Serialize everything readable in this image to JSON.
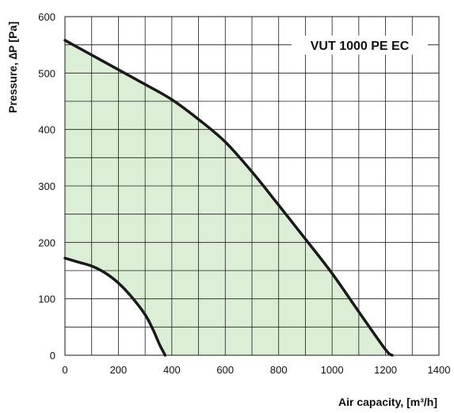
{
  "chart_data": {
    "type": "area",
    "xlabel": "Air capacity, [m³/h]",
    "ylabel": "Pressure, ∆P [Pa]",
    "xlim": [
      0,
      1400
    ],
    "ylim": [
      0,
      600
    ],
    "x_ticks": [
      "0",
      "200",
      "400",
      "600",
      "800",
      "1000",
      "1200",
      "1400"
    ],
    "y_ticks": [
      "0",
      "100",
      "200",
      "300",
      "400",
      "500",
      "600"
    ],
    "x_grid_step": 100,
    "y_grid_step": 50,
    "grid": true,
    "fill_color": "#dcefd6",
    "line_color": "#1a1a1a",
    "series_label": "VUT 1000 PE EC",
    "series": [
      {
        "role": "max",
        "x": [
          0,
          100,
          200,
          300,
          400,
          500,
          600,
          700,
          800,
          900,
          1000,
          1100,
          1200,
          1225
        ],
        "y": [
          558,
          532,
          506,
          480,
          453,
          418,
          378,
          325,
          266,
          206,
          145,
          77,
          10,
          0
        ]
      },
      {
        "role": "min",
        "x": [
          0,
          50,
          100,
          150,
          200,
          250,
          300,
          330,
          355,
          375
        ],
        "y": [
          172,
          165,
          158,
          146,
          128,
          103,
          72,
          45,
          18,
          0
        ]
      }
    ]
  }
}
